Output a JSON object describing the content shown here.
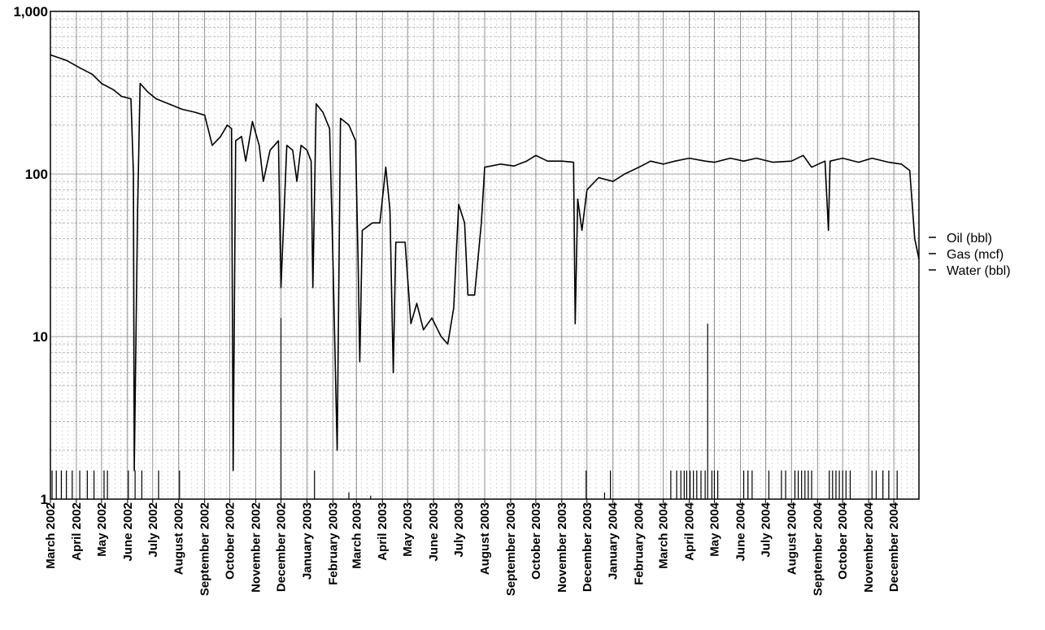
{
  "chart_data": {
    "type": "line",
    "title": "",
    "xlabel": "",
    "ylabel": "",
    "y_scale": "log",
    "ylim": [
      1,
      1000
    ],
    "xlim": [
      "2002-03-01",
      "2004-12-31"
    ],
    "grid": true,
    "legend_position": "right",
    "y_ticks": [
      {
        "value": 1,
        "label": "1"
      },
      {
        "value": 10,
        "label": "10"
      },
      {
        "value": 100,
        "label": "100"
      },
      {
        "value": 1000,
        "label": "1,000"
      }
    ],
    "x_ticks": [
      {
        "date": "2002-03-01",
        "label": "March 2002"
      },
      {
        "date": "2002-04-01",
        "label": "April 2002"
      },
      {
        "date": "2002-05-01",
        "label": "May 2002"
      },
      {
        "date": "2002-06-01",
        "label": "June 2002"
      },
      {
        "date": "2002-07-01",
        "label": "July 2002"
      },
      {
        "date": "2002-08-01",
        "label": "August 2002"
      },
      {
        "date": "2002-09-01",
        "label": "September 2002"
      },
      {
        "date": "2002-10-01",
        "label": "October 2002"
      },
      {
        "date": "2002-11-01",
        "label": "November 2002"
      },
      {
        "date": "2002-12-01",
        "label": "December 2002"
      },
      {
        "date": "2003-01-01",
        "label": "January 2003"
      },
      {
        "date": "2003-02-01",
        "label": "February 2003"
      },
      {
        "date": "2003-03-01",
        "label": "March 2003"
      },
      {
        "date": "2003-04-01",
        "label": "April 2003"
      },
      {
        "date": "2003-05-01",
        "label": "May 2003"
      },
      {
        "date": "2003-06-01",
        "label": "June 2003"
      },
      {
        "date": "2003-07-01",
        "label": "July 2003"
      },
      {
        "date": "2003-08-01",
        "label": "August 2003"
      },
      {
        "date": "2003-09-01",
        "label": "September 2003"
      },
      {
        "date": "2003-10-01",
        "label": "October 2003"
      },
      {
        "date": "2003-11-01",
        "label": "November 2003"
      },
      {
        "date": "2003-12-01",
        "label": "December 2003"
      },
      {
        "date": "2004-01-01",
        "label": "January 2004"
      },
      {
        "date": "2004-02-01",
        "label": "February 2004"
      },
      {
        "date": "2004-03-01",
        "label": "March 2004"
      },
      {
        "date": "2004-04-01",
        "label": "April 2004"
      },
      {
        "date": "2004-05-01",
        "label": "May 2004"
      },
      {
        "date": "2004-06-01",
        "label": "June 2004"
      },
      {
        "date": "2004-07-01",
        "label": "July 2004"
      },
      {
        "date": "2004-08-01",
        "label": "August 2004"
      },
      {
        "date": "2004-09-01",
        "label": "September 2004"
      },
      {
        "date": "2004-10-01",
        "label": "October 2004"
      },
      {
        "date": "2004-11-01",
        "label": "November 2004"
      },
      {
        "date": "2004-12-01",
        "label": "December 2004"
      }
    ],
    "series": [
      {
        "name": "Oil (bbl)",
        "color": "#000000",
        "points": [
          [
            "2002-03-01",
            540
          ],
          [
            "2002-03-20",
            500
          ],
          [
            "2002-04-05",
            450
          ],
          [
            "2002-04-20",
            410
          ],
          [
            "2002-05-01",
            360
          ],
          [
            "2002-05-15",
            330
          ],
          [
            "2002-05-25",
            300
          ],
          [
            "2002-06-05",
            290
          ],
          [
            "2002-06-08",
            100
          ],
          [
            "2002-06-09",
            1.5
          ],
          [
            "2002-06-13",
            60
          ],
          [
            "2002-06-16",
            360
          ],
          [
            "2002-06-25",
            320
          ],
          [
            "2002-07-05",
            290
          ],
          [
            "2002-07-20",
            270
          ],
          [
            "2002-08-05",
            250
          ],
          [
            "2002-08-20",
            240
          ],
          [
            "2002-09-01",
            230
          ],
          [
            "2002-09-10",
            150
          ],
          [
            "2002-09-20",
            170
          ],
          [
            "2002-09-28",
            200
          ],
          [
            "2002-10-03",
            190
          ],
          [
            "2002-10-05",
            1.5
          ],
          [
            "2002-10-08",
            160
          ],
          [
            "2002-10-15",
            170
          ],
          [
            "2002-10-20",
            120
          ],
          [
            "2002-10-28",
            210
          ],
          [
            "2002-11-05",
            150
          ],
          [
            "2002-11-10",
            90
          ],
          [
            "2002-11-18",
            140
          ],
          [
            "2002-11-28",
            160
          ],
          [
            "2002-12-01",
            20
          ],
          [
            "2002-12-08",
            150
          ],
          [
            "2002-12-15",
            140
          ],
          [
            "2002-12-20",
            90
          ],
          [
            "2002-12-25",
            150
          ],
          [
            "2003-01-01",
            140
          ],
          [
            "2003-01-06",
            120
          ],
          [
            "2003-01-08",
            20
          ],
          [
            "2003-01-12",
            270
          ],
          [
            "2003-01-20",
            240
          ],
          [
            "2003-01-28",
            190
          ],
          [
            "2003-02-01",
            30
          ],
          [
            "2003-02-06",
            2
          ],
          [
            "2003-02-10",
            220
          ],
          [
            "2003-02-20",
            200
          ],
          [
            "2003-02-28",
            160
          ],
          [
            "2003-03-03",
            30
          ],
          [
            "2003-03-05",
            7
          ],
          [
            "2003-03-08",
            45
          ],
          [
            "2003-03-20",
            50
          ],
          [
            "2003-03-29",
            50
          ],
          [
            "2003-04-05",
            110
          ],
          [
            "2003-04-10",
            60
          ],
          [
            "2003-04-14",
            6
          ],
          [
            "2003-04-17",
            38
          ],
          [
            "2003-04-28",
            38
          ],
          [
            "2003-05-05",
            12
          ],
          [
            "2003-05-12",
            16
          ],
          [
            "2003-05-20",
            11
          ],
          [
            "2003-05-30",
            13
          ],
          [
            "2003-06-10",
            10
          ],
          [
            "2003-06-18",
            9
          ],
          [
            "2003-06-25",
            15
          ],
          [
            "2003-07-01",
            65
          ],
          [
            "2003-07-08",
            50
          ],
          [
            "2003-07-12",
            18
          ],
          [
            "2003-07-20",
            18
          ],
          [
            "2003-07-28",
            50
          ],
          [
            "2003-08-01",
            110
          ],
          [
            "2003-08-20",
            115
          ],
          [
            "2003-09-05",
            112
          ],
          [
            "2003-09-20",
            120
          ],
          [
            "2003-10-01",
            130
          ],
          [
            "2003-10-15",
            120
          ],
          [
            "2003-11-01",
            120
          ],
          [
            "2003-11-15",
            118
          ],
          [
            "2003-11-17",
            12
          ],
          [
            "2003-11-20",
            70
          ],
          [
            "2003-11-25",
            45
          ],
          [
            "2003-12-01",
            80
          ],
          [
            "2003-12-15",
            95
          ],
          [
            "2004-01-01",
            90
          ],
          [
            "2004-01-15",
            100
          ],
          [
            "2004-02-01",
            110
          ],
          [
            "2004-02-15",
            120
          ],
          [
            "2004-03-01",
            115
          ],
          [
            "2004-03-15",
            120
          ],
          [
            "2004-04-01",
            125
          ],
          [
            "2004-04-20",
            120
          ],
          [
            "2004-05-01",
            118
          ],
          [
            "2004-05-20",
            125
          ],
          [
            "2004-06-05",
            120
          ],
          [
            "2004-06-20",
            125
          ],
          [
            "2004-07-10",
            118
          ],
          [
            "2004-08-01",
            120
          ],
          [
            "2004-08-15",
            130
          ],
          [
            "2004-08-25",
            110
          ],
          [
            "2004-09-10",
            120
          ],
          [
            "2004-09-14",
            45
          ],
          [
            "2004-09-16",
            120
          ],
          [
            "2004-10-01",
            125
          ],
          [
            "2004-10-20",
            118
          ],
          [
            "2004-11-05",
            125
          ],
          [
            "2004-11-25",
            118
          ],
          [
            "2004-12-10",
            115
          ],
          [
            "2004-12-20",
            105
          ],
          [
            "2004-12-26",
            40
          ],
          [
            "2004-12-31",
            30
          ]
        ]
      },
      {
        "name": "Gas (mcf)",
        "color": "#000000",
        "points": []
      },
      {
        "name": "Water (bbl)",
        "color": "#000000",
        "spikes": [
          [
            "2002-03-03",
            1.5
          ],
          [
            "2002-03-08",
            1.5
          ],
          [
            "2002-03-14",
            1.5
          ],
          [
            "2002-03-20",
            1.5
          ],
          [
            "2002-03-27",
            1.5
          ],
          [
            "2002-04-05",
            1.5
          ],
          [
            "2002-04-14",
            1.5
          ],
          [
            "2002-04-22",
            1.5
          ],
          [
            "2002-05-04",
            1.5
          ],
          [
            "2002-05-08",
            1.5
          ],
          [
            "2002-06-02",
            1.5
          ],
          [
            "2002-06-10",
            1.5
          ],
          [
            "2002-06-18",
            1.5
          ],
          [
            "2002-07-08",
            1.5
          ],
          [
            "2002-08-02",
            1.5
          ],
          [
            "2002-12-01",
            13
          ],
          [
            "2003-01-10",
            1.5
          ],
          [
            "2003-02-20",
            1.1
          ],
          [
            "2003-03-18",
            1.05
          ],
          [
            "2003-11-30",
            1.5
          ],
          [
            "2003-12-22",
            1.1
          ],
          [
            "2003-12-29",
            1.5
          ],
          [
            "2004-03-10",
            1.5
          ],
          [
            "2004-03-17",
            1.5
          ],
          [
            "2004-03-22",
            1.5
          ],
          [
            "2004-03-26",
            1.5
          ],
          [
            "2004-03-29",
            1.5
          ],
          [
            "2004-04-02",
            1.5
          ],
          [
            "2004-04-06",
            1.5
          ],
          [
            "2004-04-10",
            1.5
          ],
          [
            "2004-04-15",
            1.5
          ],
          [
            "2004-04-20",
            1.5
          ],
          [
            "2004-04-23",
            12
          ],
          [
            "2004-04-28",
            1.5
          ],
          [
            "2004-05-01",
            1.5
          ],
          [
            "2004-05-05",
            1.5
          ],
          [
            "2004-06-05",
            1.5
          ],
          [
            "2004-06-10",
            1.5
          ],
          [
            "2004-06-15",
            1.5
          ],
          [
            "2004-07-05",
            1.5
          ],
          [
            "2004-07-20",
            1.5
          ],
          [
            "2004-07-25",
            1.5
          ],
          [
            "2004-08-05",
            1.5
          ],
          [
            "2004-08-09",
            1.5
          ],
          [
            "2004-08-13",
            1.5
          ],
          [
            "2004-08-17",
            1.5
          ],
          [
            "2004-08-21",
            1.5
          ],
          [
            "2004-08-25",
            1.5
          ],
          [
            "2004-09-15",
            1.5
          ],
          [
            "2004-09-19",
            1.5
          ],
          [
            "2004-09-23",
            1.5
          ],
          [
            "2004-09-27",
            1.5
          ],
          [
            "2004-10-01",
            1.5
          ],
          [
            "2004-10-05",
            1.5
          ],
          [
            "2004-10-10",
            1.5
          ],
          [
            "2004-11-05",
            1.5
          ],
          [
            "2004-11-10",
            1.5
          ],
          [
            "2004-11-18",
            1.5
          ],
          [
            "2004-11-25",
            1.5
          ],
          [
            "2004-12-05",
            1.5
          ]
        ]
      }
    ]
  }
}
